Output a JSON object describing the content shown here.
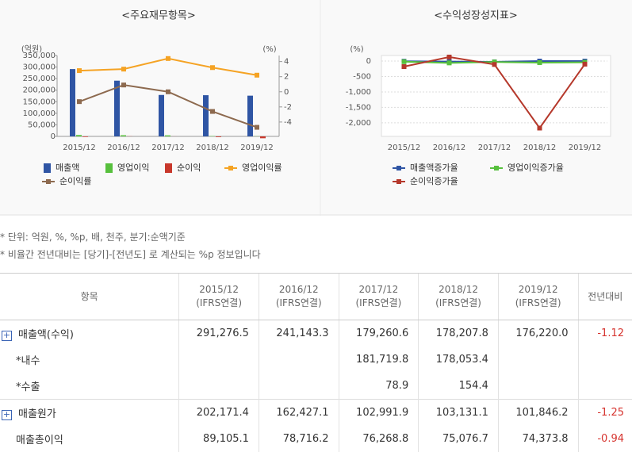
{
  "chart_data": [
    {
      "type": "bar",
      "title": "<주요재무항목>",
      "ylabel": "(억원)",
      "y2label": "(%)",
      "categories": [
        "2015/12",
        "2016/12",
        "2017/12",
        "2018/12",
        "2019/12"
      ],
      "series": [
        {
          "name": "매출액",
          "color": "#2f55a4",
          "values": [
            291276.5,
            241143.3,
            179260.6,
            178207.8,
            176220.0
          ]
        },
        {
          "name": "영업이익",
          "color": "#57c03d",
          "values": [
            6000,
            5000,
            4500,
            1500,
            800
          ]
        },
        {
          "name": "순이익",
          "color": "#c8382c",
          "values": [
            -2500,
            600,
            200,
            -3000,
            -8000
          ]
        },
        {
          "name": "영업이익률",
          "type": "line",
          "axis": "y2",
          "color": "#f5a324",
          "values": [
            2.8,
            3.0,
            4.4,
            3.2,
            2.2
          ]
        },
        {
          "name": "순이익률",
          "type": "line",
          "axis": "y2",
          "color": "#8d6a4f",
          "values": [
            -1.3,
            0.9,
            0.0,
            -2.6,
            -4.7
          ]
        }
      ],
      "ylim": [
        0,
        350000
      ],
      "yticks": [
        0,
        {
          "value": 50000,
          "label": "50,000"
        },
        {
          "value": 100000,
          "label": "100,000"
        },
        {
          "value": 150000,
          "label": "150,000"
        },
        {
          "value": 200000,
          "label": "200,000"
        },
        {
          "value": 250000,
          "label": "250,000"
        },
        {
          "value": 300000,
          "label": "300,000"
        },
        {
          "value": 350000,
          "label": "350,000"
        }
      ],
      "y2lim": [
        -5.9,
        4.8
      ],
      "y2ticks": [
        -4,
        -2,
        0,
        2,
        4
      ]
    },
    {
      "type": "line",
      "title": "<수익성장성지표>",
      "ylabel": "(%)",
      "categories": [
        "2015/12",
        "2016/12",
        "2017/12",
        "2018/12",
        "2019/12"
      ],
      "series": [
        {
          "name": "매출액증가율",
          "color": "#2f55a4",
          "values": [
            -5,
            -17.2,
            -25.7,
            -0.6,
            -1.1
          ]
        },
        {
          "name": "영업이익증가율",
          "color": "#57c03d",
          "values": [
            -20,
            -60,
            -30,
            -50,
            -40
          ]
        },
        {
          "name": "순이익증가율",
          "color": "#b5382b",
          "values": [
            -180,
            130,
            -110,
            -2170,
            -100
          ]
        }
      ],
      "ylim": [
        -2440,
        180
      ],
      "yticks": [
        {
          "value": -2000,
          "label": "-2,000"
        },
        {
          "value": -1500,
          "label": "-1,500"
        },
        {
          "value": -1000,
          "label": "-1,000"
        },
        -500,
        0
      ],
      "grid": true
    }
  ],
  "notes": [
    "* 단위: 억원, %, %p, 배, 천주, 분기:순액기준",
    "* 비율간 전년대비는 [당기]-[전년도] 로 계산되는 %p 정보입니다"
  ],
  "table": {
    "header": [
      "항목",
      {
        "period": "2015/12",
        "basis": "(IFRS연결)"
      },
      {
        "period": "2016/12",
        "basis": "(IFRS연결)"
      },
      {
        "period": "2017/12",
        "basis": "(IFRS연결)"
      },
      {
        "period": "2018/12",
        "basis": "(IFRS연결)"
      },
      {
        "period": "2019/12",
        "basis": "(IFRS연결)"
      },
      "전년대비"
    ],
    "rows": [
      {
        "label": "매출액(수익)",
        "expandable": true,
        "cells": [
          "291,276.5",
          "241,143.3",
          "179,260.6",
          "178,207.8",
          "176,220.0",
          "-1.12"
        ]
      },
      {
        "label": "*내수",
        "expandable": false,
        "cells": [
          null,
          null,
          "181,719.8",
          "178,053.4",
          null,
          null
        ]
      },
      {
        "label": "*수출",
        "expandable": false,
        "cells": [
          null,
          null,
          "78.9",
          "154.4",
          null,
          null
        ]
      },
      {
        "label": "매출원가",
        "expandable": true,
        "cells": [
          "202,171.4",
          "162,427.1",
          "102,991.9",
          "103,131.1",
          "101,846.2",
          "-1.25"
        ]
      },
      {
        "label": "매출총이익",
        "expandable": false,
        "cells": [
          "89,105.1",
          "78,716.2",
          "76,268.8",
          "75,076.7",
          "74,373.8",
          "-0.94"
        ]
      }
    ]
  }
}
